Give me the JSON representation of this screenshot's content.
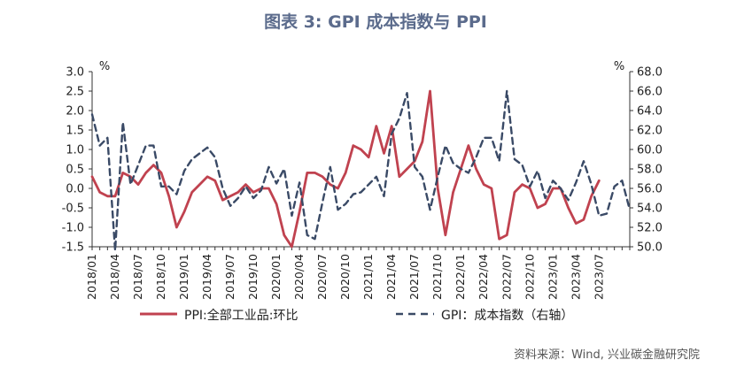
{
  "chart_data": {
    "type": "line",
    "title": "图表 3:  GPI 成本指数与 PPI",
    "source": "资料来源：Wind, 兴业碳金融研究院",
    "y_left": {
      "unit": "%",
      "ylim": [
        -1.5,
        3.0
      ],
      "ticks": [
        "3.0",
        "2.5",
        "2.0",
        "1.5",
        "1.0",
        "0.5",
        "0.0",
        "-0.5",
        "-1.0",
        "-1.5"
      ]
    },
    "y_right": {
      "unit": "%",
      "ylim": [
        50.0,
        68.0
      ],
      "ticks": [
        "68.0",
        "66.0",
        "64.0",
        "62.0",
        "60.0",
        "58.0",
        "56.0",
        "54.0",
        "52.0",
        "50.0"
      ]
    },
    "x_tick_labels": [
      "2018/01",
      "2018/04",
      "2018/07",
      "2018/10",
      "2019/01",
      "2019/04",
      "2019/07",
      "2019/10",
      "2020/01",
      "2020/04",
      "2020/07",
      "2020/10",
      "2021/01",
      "2021/04",
      "2021/07",
      "2021/10",
      "2022/01",
      "2022/04",
      "2022/07",
      "2022/10",
      "2023/01",
      "2023/04",
      "2023/07"
    ],
    "x_start": "2018/01",
    "colors": {
      "ppi": "#c0424f",
      "gpi": "#3a4a66",
      "title": "#5b6b8c",
      "axis": "#333333"
    },
    "series": [
      {
        "name": "PPI:全部工业品:环比",
        "axis": "left",
        "style": "solid",
        "values": [
          0.3,
          -0.1,
          -0.2,
          -0.2,
          0.4,
          0.3,
          0.1,
          0.4,
          0.6,
          0.4,
          -0.2,
          -1.0,
          -0.6,
          -0.1,
          0.1,
          0.3,
          0.2,
          -0.3,
          -0.2,
          -0.1,
          0.1,
          -0.1,
          0.0,
          0.0,
          -0.4,
          -1.2,
          -1.5,
          -0.6,
          0.4,
          0.4,
          0.3,
          0.1,
          0.0,
          0.4,
          1.1,
          1.0,
          0.8,
          1.6,
          0.9,
          1.6,
          0.3,
          0.5,
          0.7,
          1.2,
          2.5,
          0.0,
          -1.2,
          -0.1,
          0.5,
          1.1,
          0.5,
          0.1,
          0.0,
          -1.3,
          -1.2,
          -0.1,
          0.1,
          0.0,
          -0.5,
          -0.4,
          0.0,
          0.0,
          -0.5,
          -0.9,
          -0.8,
          -0.2,
          0.2
        ]
      },
      {
        "name": "GPI：成本指数（右轴）",
        "axis": "right",
        "style": "dashed",
        "values": [
          63.6,
          60.4,
          61.2,
          49.6,
          62.8,
          56.4,
          58.4,
          60.4,
          60.4,
          56.2,
          56.2,
          55.4,
          57.8,
          59.0,
          59.6,
          60.2,
          59.2,
          56.0,
          54.2,
          55.0,
          56.2,
          55.0,
          55.8,
          58.2,
          56.5,
          58.0,
          53.2,
          56.6,
          51.2,
          50.8,
          54.6,
          58.2,
          53.8,
          54.4,
          55.4,
          55.6,
          56.4,
          57.2,
          55.2,
          61.6,
          63.2,
          65.8,
          58.2,
          57.2,
          53.8,
          57.2,
          60.4,
          58.6,
          58.0,
          57.6,
          59.2,
          61.2,
          61.2,
          58.8,
          66.0,
          59.0,
          58.4,
          56.2,
          57.8,
          55.0,
          56.8,
          56.0,
          54.8,
          56.6,
          58.8,
          56.4,
          53.2,
          53.4,
          56.2,
          56.8,
          53.8
        ]
      }
    ]
  }
}
